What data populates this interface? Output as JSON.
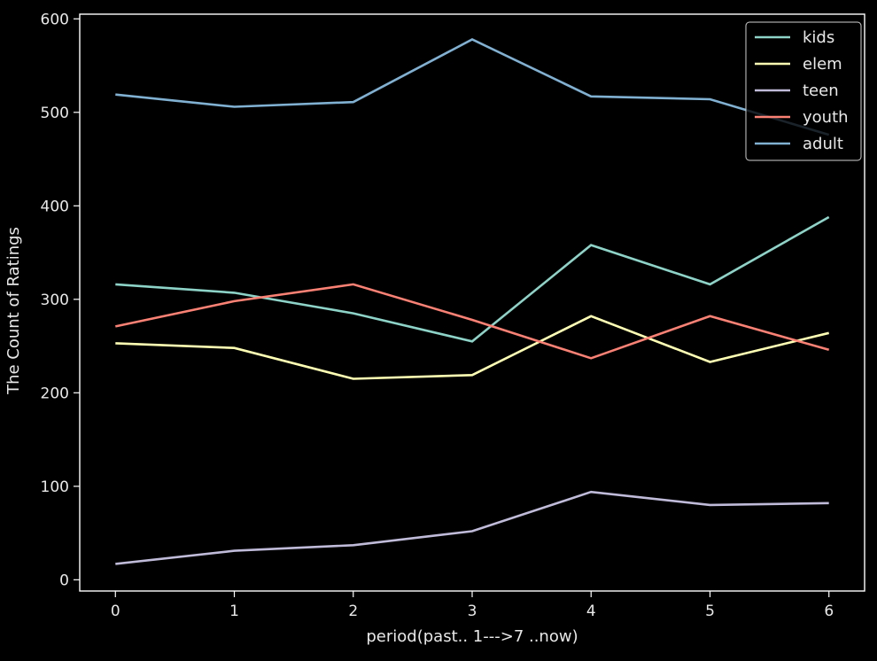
{
  "chart_data": {
    "type": "line",
    "title": "",
    "xlabel": "period(past.. 1--->7 ..now)",
    "ylabel": "The Count of Ratings",
    "x": [
      0,
      1,
      2,
      3,
      4,
      5,
      6
    ],
    "xlim": [
      -0.3,
      6.3
    ],
    "ylim": [
      -12,
      605
    ],
    "xticks": [
      0,
      1,
      2,
      3,
      4,
      5,
      6
    ],
    "yticks": [
      0,
      100,
      200,
      300,
      400,
      500,
      600
    ],
    "grid": false,
    "legend_position": "top-right",
    "background": "#000000",
    "axis_color": "#ffffff",
    "series": [
      {
        "name": "kids",
        "color": "#8dd3c7",
        "values": [
          316,
          307,
          285,
          255,
          358,
          316,
          388
        ]
      },
      {
        "name": "elem",
        "color": "#feffb3",
        "values": [
          253,
          248,
          215,
          219,
          282,
          233,
          264
        ]
      },
      {
        "name": "teen",
        "color": "#bfbbd9",
        "values": [
          17,
          31,
          37,
          52,
          94,
          80,
          82
        ]
      },
      {
        "name": "youth",
        "color": "#fa8174",
        "values": [
          271,
          298,
          316,
          278,
          237,
          282,
          246
        ]
      },
      {
        "name": "adult",
        "color": "#81b1d2",
        "values": [
          519,
          506,
          511,
          578,
          517,
          514,
          476
        ]
      }
    ]
  }
}
